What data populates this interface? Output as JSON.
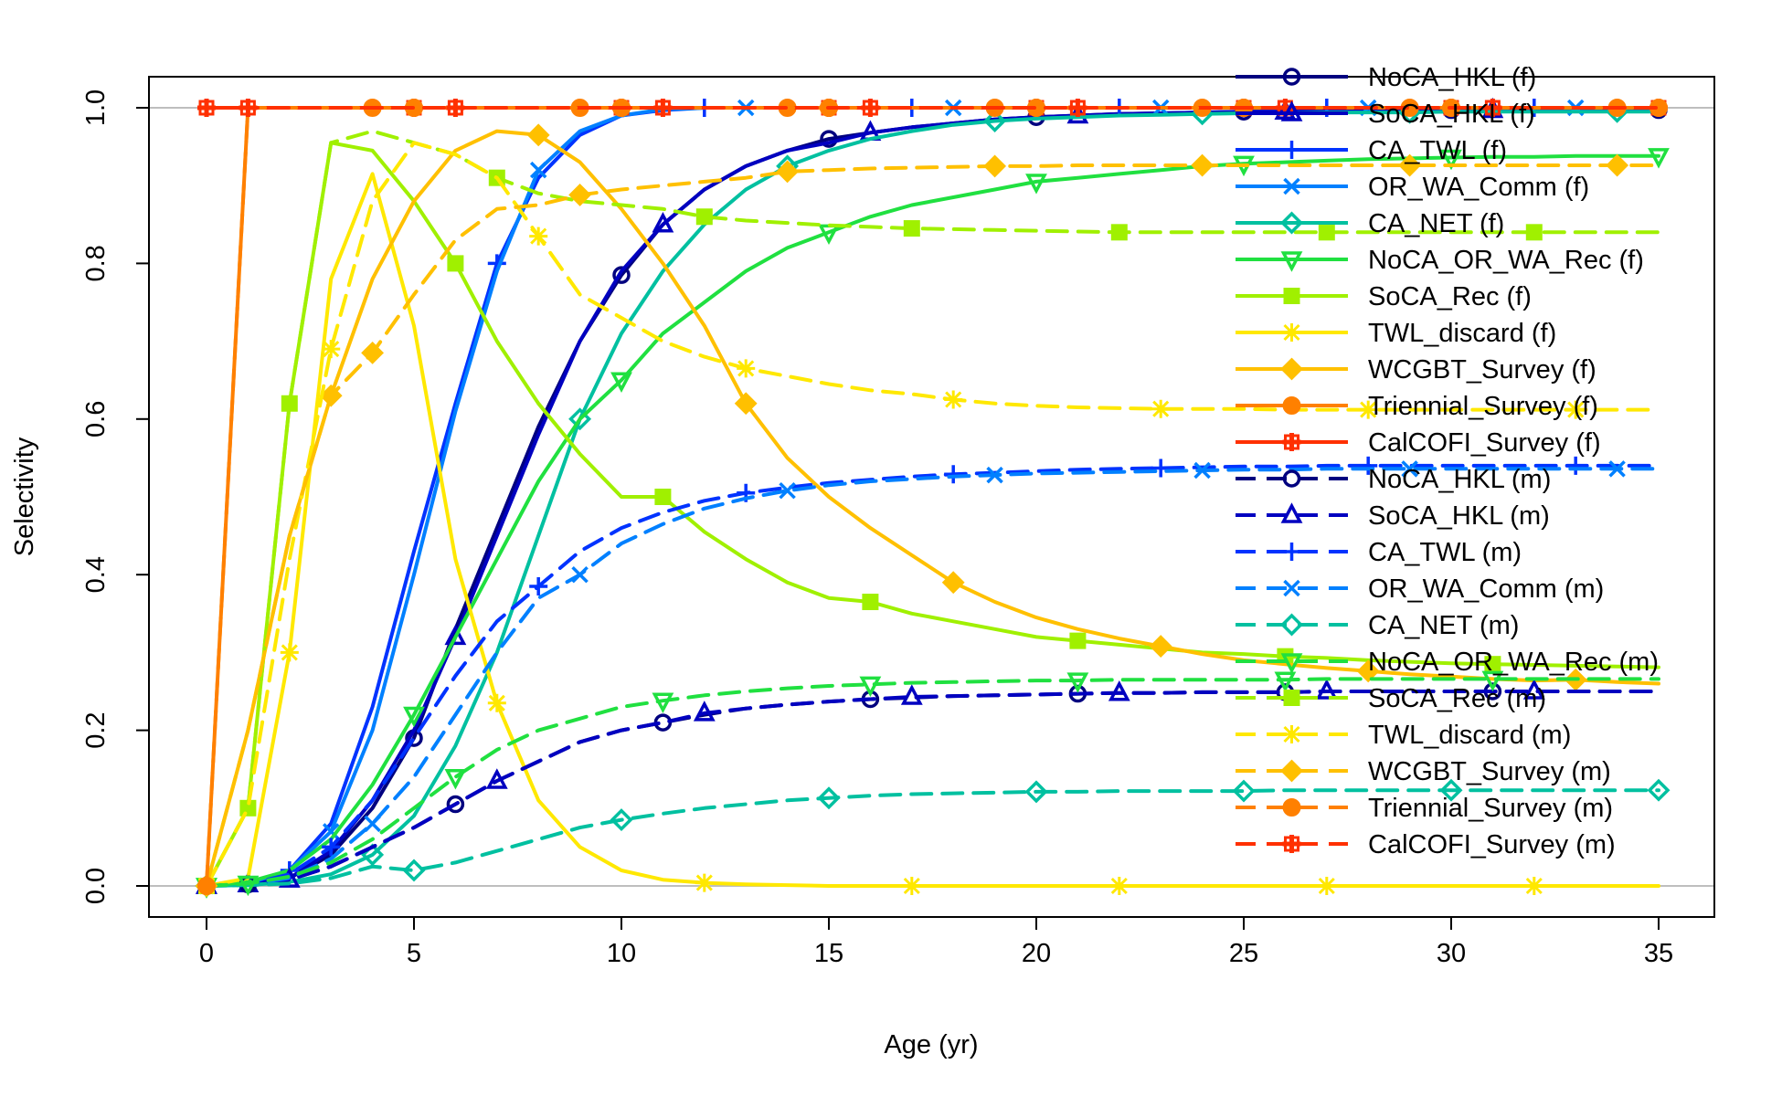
{
  "chart_data": {
    "type": "line",
    "title": "",
    "xlabel": "Age (yr)",
    "ylabel": "Selectivity",
    "xlim": [
      0,
      35
    ],
    "ylim": [
      0,
      1
    ],
    "xticks": [
      "0",
      "5",
      "10",
      "15",
      "20",
      "25",
      "30",
      "35"
    ],
    "yticks": [
      "0.0",
      "0.2",
      "0.4",
      "0.6",
      "0.8",
      "1.0"
    ],
    "reference_lines": [
      0,
      1
    ],
    "legend_position": "right",
    "x": [
      0,
      1,
      2,
      3,
      4,
      5,
      6,
      7,
      8,
      9,
      10,
      11,
      12,
      13,
      14,
      15,
      16,
      17,
      18,
      19,
      20,
      21,
      22,
      23,
      24,
      25,
      26,
      27,
      28,
      29,
      30,
      31,
      32,
      33,
      34,
      35
    ],
    "series": [
      {
        "name": "NoCA_HKL (f)",
        "color": "#00007f",
        "dash": "solid",
        "marker": "circle",
        "values": [
          0,
          0.002,
          0.01,
          0.04,
          0.1,
          0.19,
          0.33,
          0.46,
          0.59,
          0.7,
          0.785,
          0.85,
          0.895,
          0.925,
          0.945,
          0.96,
          0.968,
          0.975,
          0.98,
          0.985,
          0.988,
          0.99,
          0.992,
          0.993,
          0.994,
          0.995,
          0.995,
          0.996,
          0.996,
          0.996,
          0.997,
          0.997,
          0.997,
          0.997,
          0.997,
          0.997
        ]
      },
      {
        "name": "SoCA_HKL (f)",
        "color": "#0000c0",
        "dash": "solid",
        "marker": "triangle",
        "values": [
          0,
          0.002,
          0.01,
          0.045,
          0.11,
          0.2,
          0.32,
          0.45,
          0.58,
          0.7,
          0.79,
          0.85,
          0.895,
          0.925,
          0.945,
          0.955,
          0.968,
          0.975,
          0.98,
          0.985,
          0.988,
          0.99,
          0.992,
          0.993,
          0.994,
          0.995,
          0.995,
          0.996,
          0.996,
          0.996,
          0.997,
          0.997,
          0.997,
          0.997,
          0.997,
          0.997
        ]
      },
      {
        "name": "CA_TWL (f)",
        "color": "#0033ff",
        "dash": "solid",
        "marker": "plus",
        "values": [
          0,
          0.003,
          0.02,
          0.08,
          0.23,
          0.43,
          0.62,
          0.8,
          0.91,
          0.965,
          0.99,
          0.997,
          1,
          1,
          1,
          1,
          1,
          1,
          1,
          1,
          1,
          1,
          1,
          1,
          1,
          1,
          1,
          1,
          1,
          1,
          1,
          1,
          1,
          1,
          1,
          1
        ]
      },
      {
        "name": "OR_WA_Comm (f)",
        "color": "#0080ff",
        "dash": "solid",
        "marker": "x",
        "values": [
          0,
          0.003,
          0.02,
          0.07,
          0.2,
          0.4,
          0.61,
          0.79,
          0.92,
          0.97,
          0.99,
          0.998,
          1,
          1,
          1,
          1,
          1,
          1,
          1,
          1,
          1,
          1,
          1,
          1,
          1,
          1,
          1,
          1,
          1,
          1,
          1,
          1,
          1,
          1,
          1,
          1
        ]
      },
      {
        "name": "CA_NET (f)",
        "color": "#00c0a0",
        "dash": "solid",
        "marker": "diamond",
        "values": [
          0,
          0.001,
          0.005,
          0.015,
          0.04,
          0.09,
          0.18,
          0.3,
          0.45,
          0.6,
          0.71,
          0.79,
          0.85,
          0.895,
          0.925,
          0.945,
          0.96,
          0.97,
          0.978,
          0.983,
          0.986,
          0.988,
          0.99,
          0.991,
          0.992,
          0.993,
          0.993,
          0.994,
          0.994,
          0.994,
          0.995,
          0.995,
          0.995,
          0.995,
          0.995,
          0.995
        ]
      },
      {
        "name": "NoCA_OR_WA_Rec (f)",
        "color": "#20e040",
        "dash": "solid",
        "marker": "triangle-down",
        "values": [
          0,
          0.005,
          0.02,
          0.06,
          0.13,
          0.22,
          0.32,
          0.42,
          0.52,
          0.6,
          0.65,
          0.71,
          0.75,
          0.79,
          0.82,
          0.84,
          0.86,
          0.875,
          0.885,
          0.895,
          0.905,
          0.91,
          0.915,
          0.92,
          0.925,
          0.928,
          0.93,
          0.932,
          0.934,
          0.935,
          0.936,
          0.937,
          0.937,
          0.938,
          0.938,
          0.938
        ]
      },
      {
        "name": "SoCA_Rec (f)",
        "color": "#a0f000",
        "dash": "solid",
        "marker": "square",
        "values": [
          0,
          0.1,
          0.62,
          0.955,
          0.945,
          0.88,
          0.8,
          0.7,
          0.62,
          0.555,
          0.5,
          0.5,
          0.455,
          0.42,
          0.39,
          0.37,
          0.365,
          0.35,
          0.34,
          0.33,
          0.32,
          0.315,
          0.31,
          0.305,
          0.3,
          0.298,
          0.295,
          0.293,
          0.29,
          0.288,
          0.286,
          0.285,
          0.284,
          0.283,
          0.282,
          0.281
        ]
      },
      {
        "name": "TWL_discard (f)",
        "color": "#ffe800",
        "dash": "solid",
        "marker": "star",
        "values": [
          0,
          0.01,
          0.3,
          0.78,
          0.915,
          0.72,
          0.42,
          0.235,
          0.11,
          0.05,
          0.02,
          0.008,
          0.004,
          0.002,
          0.001,
          0,
          0,
          0,
          0,
          0,
          0,
          0,
          0,
          0,
          0,
          0,
          0,
          0,
          0,
          0,
          0,
          0,
          0,
          0,
          0,
          0
        ]
      },
      {
        "name": "WCGBT_Survey (f)",
        "color": "#ffc000",
        "dash": "solid",
        "marker": "diamond-filled",
        "values": [
          0,
          0.2,
          0.45,
          0.63,
          0.78,
          0.88,
          0.945,
          0.97,
          0.965,
          0.93,
          0.87,
          0.8,
          0.72,
          0.62,
          0.55,
          0.5,
          0.46,
          0.425,
          0.39,
          0.365,
          0.345,
          0.33,
          0.318,
          0.308,
          0.298,
          0.29,
          0.285,
          0.28,
          0.276,
          0.272,
          0.269,
          0.266,
          0.264,
          0.265,
          0.262,
          0.26
        ]
      },
      {
        "name": "Triennial_Survey (f)",
        "color": "#ff8000",
        "dash": "solid",
        "marker": "circle-filled",
        "values": [
          0,
          1,
          1,
          1,
          1,
          1,
          1,
          1,
          1,
          1,
          1,
          1,
          1,
          1,
          1,
          1,
          1,
          1,
          1,
          1,
          1,
          1,
          1,
          1,
          1,
          1,
          1,
          1,
          1,
          1,
          1,
          1,
          1,
          1,
          1,
          1
        ]
      },
      {
        "name": "CalCOFI_Survey (f)",
        "color": "#ff3000",
        "dash": "solid",
        "marker": "cross-star",
        "values": [
          1,
          1,
          1,
          1,
          1,
          1,
          1,
          1,
          1,
          1,
          1,
          1,
          1,
          1,
          1,
          1,
          1,
          1,
          1,
          1,
          1,
          1,
          1,
          1,
          1,
          1,
          1,
          1,
          1,
          1,
          1,
          1,
          1,
          1,
          1,
          1
        ]
      },
      {
        "name": "NoCA_HKL (m)",
        "color": "#00007f",
        "dash": "dashed",
        "marker": "circle",
        "values": [
          0,
          0.002,
          0.008,
          0.025,
          0.05,
          0.075,
          0.105,
          0.135,
          0.16,
          0.185,
          0.2,
          0.21,
          0.22,
          0.228,
          0.233,
          0.237,
          0.24,
          0.242,
          0.244,
          0.245,
          0.246,
          0.247,
          0.248,
          0.248,
          0.249,
          0.249,
          0.249,
          0.25,
          0.25,
          0.25,
          0.25,
          0.25,
          0.25,
          0.25,
          0.25,
          0.25
        ]
      },
      {
        "name": "SoCA_HKL (m)",
        "color": "#0000c0",
        "dash": "dashed",
        "marker": "triangle",
        "values": [
          0,
          0.002,
          0.008,
          0.025,
          0.05,
          0.075,
          0.105,
          0.135,
          0.16,
          0.185,
          0.2,
          0.21,
          0.222,
          0.228,
          0.233,
          0.237,
          0.24,
          0.243,
          0.244,
          0.245,
          0.246,
          0.247,
          0.248,
          0.248,
          0.249,
          0.249,
          0.249,
          0.25,
          0.25,
          0.25,
          0.25,
          0.25,
          0.25,
          0.25,
          0.25,
          0.25
        ]
      },
      {
        "name": "CA_TWL (m)",
        "color": "#0033ff",
        "dash": "dashed",
        "marker": "plus",
        "values": [
          0,
          0.002,
          0.015,
          0.05,
          0.11,
          0.19,
          0.27,
          0.34,
          0.385,
          0.43,
          0.46,
          0.48,
          0.495,
          0.505,
          0.512,
          0.518,
          0.522,
          0.526,
          0.529,
          0.531,
          0.533,
          0.535,
          0.536,
          0.537,
          0.538,
          0.539,
          0.539,
          0.54,
          0.54,
          0.54,
          0.54,
          0.54,
          0.54,
          0.54,
          0.54,
          0.54
        ]
      },
      {
        "name": "OR_WA_Comm (m)",
        "color": "#0080ff",
        "dash": "dashed",
        "marker": "x",
        "values": [
          0,
          0.002,
          0.01,
          0.035,
          0.08,
          0.14,
          0.22,
          0.3,
          0.37,
          0.4,
          0.44,
          0.465,
          0.485,
          0.498,
          0.508,
          0.515,
          0.52,
          0.523,
          0.526,
          0.528,
          0.53,
          0.531,
          0.532,
          0.533,
          0.534,
          0.535,
          0.535,
          0.536,
          0.536,
          0.536,
          0.536,
          0.536,
          0.536,
          0.536,
          0.536,
          0.536
        ]
      },
      {
        "name": "CA_NET (m)",
        "color": "#00c0a0",
        "dash": "dashed",
        "marker": "diamond",
        "values": [
          0,
          0.001,
          0.003,
          0.01,
          0.025,
          0.02,
          0.03,
          0.045,
          0.06,
          0.075,
          0.085,
          0.093,
          0.1,
          0.105,
          0.11,
          0.113,
          0.116,
          0.118,
          0.119,
          0.12,
          0.121,
          0.121,
          0.122,
          0.122,
          0.122,
          0.122,
          0.123,
          0.123,
          0.123,
          0.123,
          0.123,
          0.123,
          0.123,
          0.123,
          0.123,
          0.123
        ]
      },
      {
        "name": "NoCA_OR_WA_Rec (m)",
        "color": "#20e040",
        "dash": "dashed",
        "marker": "triangle-down",
        "values": [
          0,
          0.003,
          0.012,
          0.03,
          0.06,
          0.1,
          0.14,
          0.175,
          0.2,
          0.215,
          0.23,
          0.238,
          0.245,
          0.25,
          0.254,
          0.257,
          0.259,
          0.261,
          0.262,
          0.263,
          0.264,
          0.264,
          0.265,
          0.265,
          0.265,
          0.265,
          0.265,
          0.266,
          0.266,
          0.266,
          0.266,
          0.266,
          0.266,
          0.266,
          0.266,
          0.266
        ]
      },
      {
        "name": "SoCA_Rec (m)",
        "color": "#a0f000",
        "dash": "dashed",
        "marker": "square",
        "values": [
          0,
          0.1,
          0.62,
          0.955,
          0.97,
          0.955,
          0.94,
          0.91,
          0.89,
          0.88,
          0.875,
          0.87,
          0.86,
          0.855,
          0.852,
          0.849,
          0.847,
          0.845,
          0.844,
          0.843,
          0.842,
          0.841,
          0.84,
          0.84,
          0.84,
          0.84,
          0.84,
          0.84,
          0.84,
          0.84,
          0.84,
          0.84,
          0.84,
          0.84,
          0.84,
          0.84
        ]
      },
      {
        "name": "TWL_discard (m)",
        "color": "#ffe800",
        "dash": "dashed",
        "marker": "star",
        "values": [
          0,
          0.1,
          0.42,
          0.69,
          0.88,
          0.955,
          0.94,
          0.91,
          0.835,
          0.76,
          0.73,
          0.7,
          0.68,
          0.665,
          0.655,
          0.645,
          0.637,
          0.632,
          0.625,
          0.62,
          0.617,
          0.615,
          0.614,
          0.613,
          0.613,
          0.613,
          0.612,
          0.612,
          0.612,
          0.612,
          0.612,
          0.612,
          0.612,
          0.612,
          0.612,
          0.612
        ]
      },
      {
        "name": "WCGBT_Survey (m)",
        "color": "#ffc000",
        "dash": "dashed",
        "marker": "diamond-filled",
        "values": [
          0,
          0.2,
          0.45,
          0.63,
          0.685,
          0.76,
          0.83,
          0.87,
          0.875,
          0.888,
          0.895,
          0.9,
          0.905,
          0.91,
          0.918,
          0.92,
          0.922,
          0.923,
          0.924,
          0.925,
          0.925,
          0.926,
          0.926,
          0.926,
          0.926,
          0.926,
          0.926,
          0.926,
          0.926,
          0.926,
          0.926,
          0.926,
          0.926,
          0.926,
          0.926,
          0.926
        ]
      },
      {
        "name": "Triennial_Survey (m)",
        "color": "#ff8000",
        "dash": "dashed",
        "marker": "circle-filled",
        "values": [
          0,
          1,
          1,
          1,
          1,
          1,
          1,
          1,
          1,
          1,
          1,
          1,
          1,
          1,
          1,
          1,
          1,
          1,
          1,
          1,
          1,
          1,
          1,
          1,
          1,
          1,
          1,
          1,
          1,
          1,
          1,
          1,
          1,
          1,
          1,
          1
        ]
      },
      {
        "name": "CalCOFI_Survey (m)",
        "color": "#ff3000",
        "dash": "dashed",
        "marker": "cross-star",
        "values": [
          1,
          1,
          1,
          1,
          1,
          1,
          1,
          1,
          1,
          1,
          1,
          1,
          1,
          1,
          1,
          1,
          1,
          1,
          1,
          1,
          1,
          1,
          1,
          1,
          1,
          1,
          1,
          1,
          1,
          1,
          1,
          1,
          1,
          1,
          1,
          1
        ]
      }
    ]
  }
}
